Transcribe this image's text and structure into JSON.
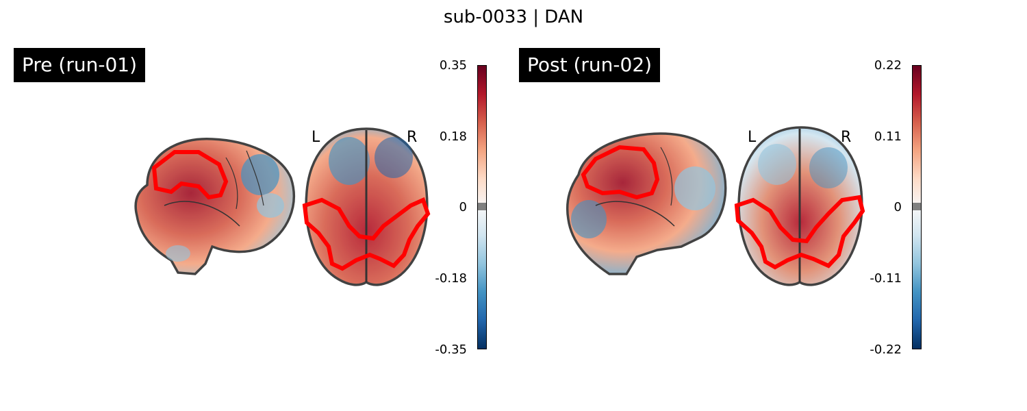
{
  "figure": {
    "title": "sub-0033 | DAN"
  },
  "panels": [
    {
      "label": "Pre (run-01)",
      "orientation_left": "L",
      "orientation_right": "R",
      "colorbar": {
        "ticks": [
          "0.35",
          "0.18",
          "0",
          "-0.18",
          "-0.35"
        ],
        "colormap": [
          "#67001f",
          "#b2182b",
          "#d6604d",
          "#f4a582",
          "#fddbc7",
          "#f7f7f7",
          "#d1e5f0",
          "#92c5de",
          "#4393c3",
          "#2166ac",
          "#053061"
        ],
        "zero_band": "#808080"
      }
    },
    {
      "label": "Post (run-02)",
      "orientation_left": "L",
      "orientation_right": "R",
      "colorbar": {
        "ticks": [
          "0.22",
          "0.11",
          "0",
          "-0.11",
          "-0.22"
        ],
        "colormap": [
          "#67001f",
          "#b2182b",
          "#d6604d",
          "#f4a582",
          "#fddbc7",
          "#f7f7f7",
          "#d1e5f0",
          "#92c5de",
          "#4393c3",
          "#2166ac",
          "#053061"
        ],
        "zero_band": "#808080"
      }
    }
  ],
  "colors": {
    "roi_outline": "#ff0000",
    "brain_outline": "#333333"
  }
}
